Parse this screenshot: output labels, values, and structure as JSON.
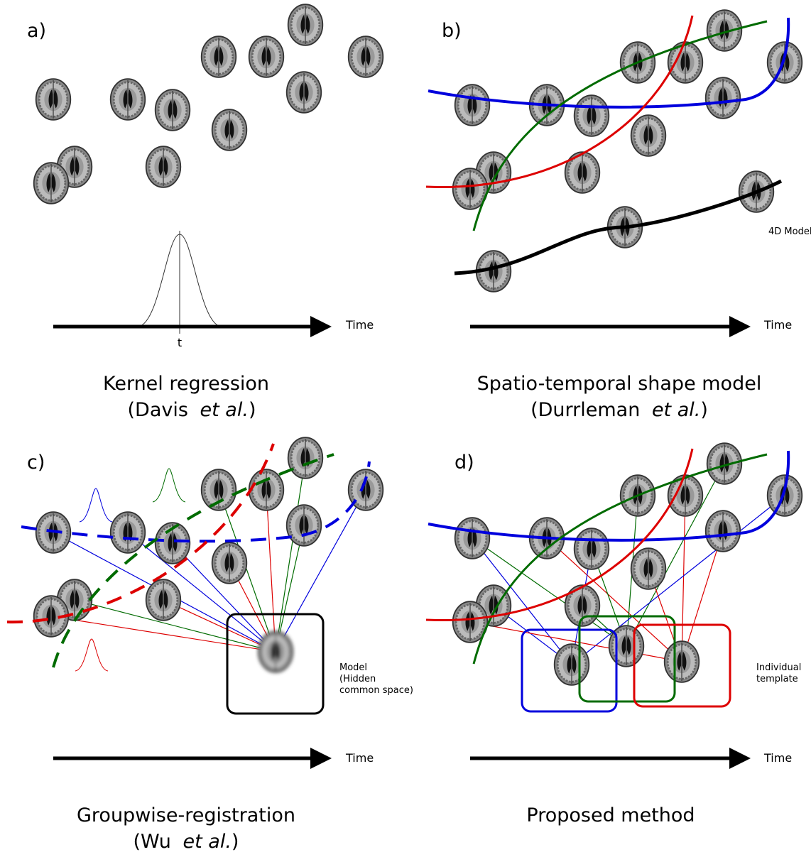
{
  "panels": [
    {
      "label": "a)",
      "axis_label": "Time",
      "kernel_label": "t",
      "caption": "Kernel regression",
      "citation": [
        "(Davis",
        "et al.",
        ")"
      ]
    },
    {
      "label": "b)",
      "axis_label": "Time",
      "annotation": [
        "4D Model"
      ],
      "caption": "Spatio-temporal shape model",
      "citation": [
        "(Durrleman",
        "et al.",
        ")"
      ]
    },
    {
      "label": "c)",
      "axis_label": "Time",
      "annotation": [
        "Model",
        "(Hidden",
        "common space)"
      ],
      "caption": "Groupwise-registration",
      "citation": [
        "(Wu",
        "et al.",
        ")"
      ]
    },
    {
      "label": "d)",
      "axis_label": "Time",
      "annotation": [
        "Individual",
        "template"
      ],
      "caption": "Proposed method"
    }
  ]
}
